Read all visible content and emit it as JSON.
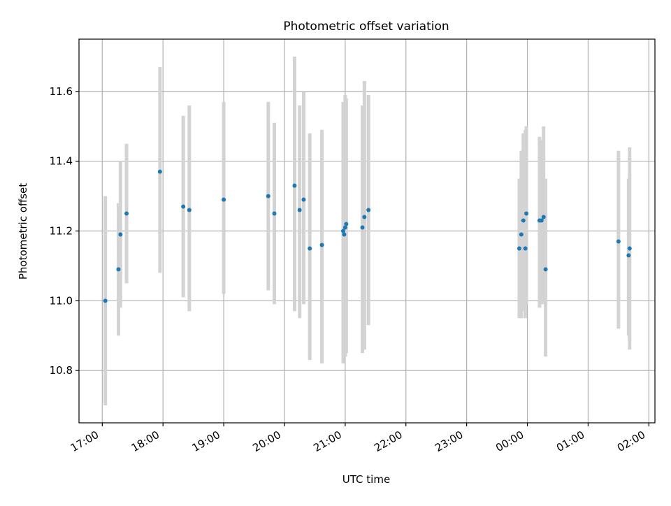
{
  "chart_data": {
    "type": "scatter",
    "title": "Photometric offset variation",
    "xlabel": "UTC time",
    "ylabel": "Photometric offset",
    "x_ticks": [
      "17:00",
      "18:00",
      "19:00",
      "20:00",
      "21:00",
      "22:00",
      "23:00",
      "00:00",
      "01:00",
      "02:00"
    ],
    "y_ticks": [
      "10.8",
      "11.0",
      "11.2",
      "11.4",
      "11.6"
    ],
    "ylim": [
      10.65,
      11.75
    ],
    "xlim": [
      "16:37",
      "02:06"
    ],
    "grid": true,
    "errorbar_color": "#d3d3d3",
    "point_color": "#1f77b4",
    "points": [
      {
        "x": "17:03",
        "y": 11.0,
        "y_low": 10.7,
        "y_high": 11.3
      },
      {
        "x": "17:16",
        "y": 11.09,
        "y_low": 10.9,
        "y_high": 11.28
      },
      {
        "x": "17:18",
        "y": 11.19,
        "y_low": 10.98,
        "y_high": 11.4
      },
      {
        "x": "17:24",
        "y": 11.25,
        "y_low": 11.05,
        "y_high": 11.45
      },
      {
        "x": "17:57",
        "y": 11.37,
        "y_low": 11.08,
        "y_high": 11.67
      },
      {
        "x": "18:20",
        "y": 11.27,
        "y_low": 11.01,
        "y_high": 11.53
      },
      {
        "x": "18:26",
        "y": 11.26,
        "y_low": 10.97,
        "y_high": 11.56
      },
      {
        "x": "19:00",
        "y": 11.29,
        "y_low": 11.02,
        "y_high": 11.57
      },
      {
        "x": "19:44",
        "y": 11.3,
        "y_low": 11.03,
        "y_high": 11.57
      },
      {
        "x": "19:50",
        "y": 11.25,
        "y_low": 10.99,
        "y_high": 11.51
      },
      {
        "x": "20:10",
        "y": 11.33,
        "y_low": 10.97,
        "y_high": 11.7
      },
      {
        "x": "20:15",
        "y": 11.26,
        "y_low": 10.95,
        "y_high": 11.56
      },
      {
        "x": "20:19",
        "y": 11.29,
        "y_low": 10.99,
        "y_high": 11.6
      },
      {
        "x": "20:25",
        "y": 11.15,
        "y_low": 10.83,
        "y_high": 11.48
      },
      {
        "x": "20:37",
        "y": 11.16,
        "y_low": 10.82,
        "y_high": 11.49
      },
      {
        "x": "20:58",
        "y": 11.2,
        "y_low": 10.82,
        "y_high": 11.57
      },
      {
        "x": "20:59",
        "y": 11.19,
        "y_low": 10.84,
        "y_high": 11.55
      },
      {
        "x": "21:00",
        "y": 11.21,
        "y_low": 10.84,
        "y_high": 11.59
      },
      {
        "x": "21:01",
        "y": 11.22,
        "y_low": 10.85,
        "y_high": 11.58
      },
      {
        "x": "21:17",
        "y": 11.21,
        "y_low": 10.85,
        "y_high": 11.56
      },
      {
        "x": "21:19",
        "y": 11.24,
        "y_low": 10.86,
        "y_high": 11.63
      },
      {
        "x": "21:23",
        "y": 11.26,
        "y_low": 10.93,
        "y_high": 11.59
      },
      {
        "x": "23:52",
        "y": 11.15,
        "y_low": 10.95,
        "y_high": 11.35
      },
      {
        "x": "23:54",
        "y": 11.19,
        "y_low": 10.95,
        "y_high": 11.43
      },
      {
        "x": "23:56",
        "y": 11.23,
        "y_low": 10.97,
        "y_high": 11.48
      },
      {
        "x": "23:58",
        "y": 11.15,
        "y_low": 10.95,
        "y_high": 11.49
      },
      {
        "x": "23:59",
        "y": 11.25,
        "y_low": 10.99,
        "y_high": 11.5
      },
      {
        "x": "00:12",
        "y": 11.23,
        "y_low": 10.98,
        "y_high": 11.47
      },
      {
        "x": "00:14",
        "y": 11.23,
        "y_low": 10.99,
        "y_high": 11.46
      },
      {
        "x": "00:16",
        "y": 11.24,
        "y_low": 10.99,
        "y_high": 11.5
      },
      {
        "x": "00:18",
        "y": 11.09,
        "y_low": 10.84,
        "y_high": 11.35
      },
      {
        "x": "01:30",
        "y": 11.17,
        "y_low": 10.92,
        "y_high": 11.43
      },
      {
        "x": "01:40",
        "y": 11.13,
        "y_low": 10.9,
        "y_high": 11.35
      },
      {
        "x": "01:41",
        "y": 11.15,
        "y_low": 10.86,
        "y_high": 11.44
      }
    ]
  }
}
